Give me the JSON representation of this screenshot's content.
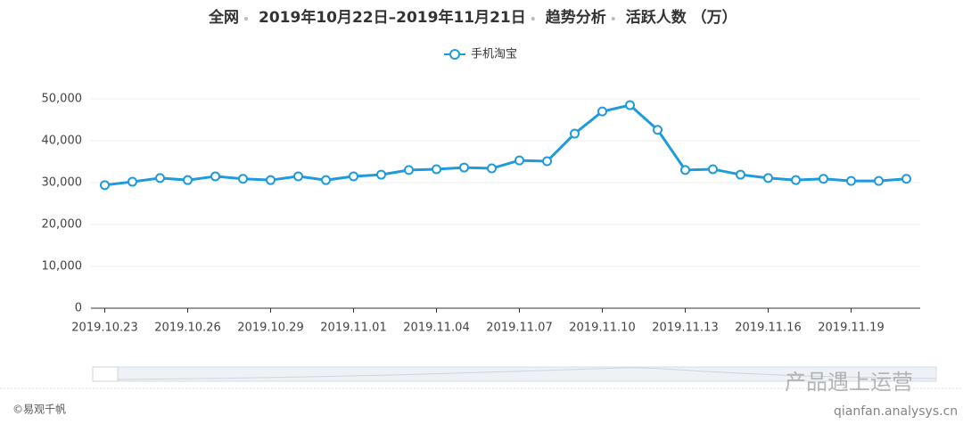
{
  "chart_data": {
    "type": "line",
    "title_parts": [
      "全网",
      "2019年10月22日–2019年11月21日",
      "趋势分析",
      "活跃人数 （万）"
    ],
    "categories": [
      "2019.10.23",
      null,
      null,
      "2019.10.26",
      null,
      null,
      "2019.10.29",
      null,
      null,
      "2019.11.01",
      null,
      null,
      "2019.11.04",
      null,
      null,
      "2019.11.07",
      null,
      null,
      "2019.11.10",
      null,
      null,
      "2019.11.13",
      null,
      null,
      "2019.11.16",
      null,
      null,
      "2019.11.19",
      null,
      null
    ],
    "series": [
      {
        "name": "手机淘宝",
        "color": "#1e9bdc",
        "values": [
          29400,
          30200,
          31100,
          30600,
          31500,
          30900,
          30600,
          31500,
          30600,
          31500,
          31900,
          33000,
          33200,
          33600,
          33400,
          35300,
          35100,
          41700,
          47000,
          48500,
          42600,
          33000,
          33200,
          31900,
          31100,
          30600,
          30900,
          30400,
          30400,
          30900
        ]
      }
    ],
    "ylim": [
      0,
      50000
    ],
    "yticks": [
      0,
      {
        "value": 10000,
        "label": "10,000"
      },
      {
        "value": 20000,
        "label": "20,000"
      },
      {
        "value": 30000,
        "label": "30,000"
      },
      {
        "value": 40000,
        "label": "40,000"
      },
      {
        "value": 50000,
        "label": "50,000"
      }
    ],
    "grid": true,
    "source": "©易观千帆",
    "watermark": [
      "产品遇上运营",
      "qianfan.analysys.cn"
    ]
  }
}
